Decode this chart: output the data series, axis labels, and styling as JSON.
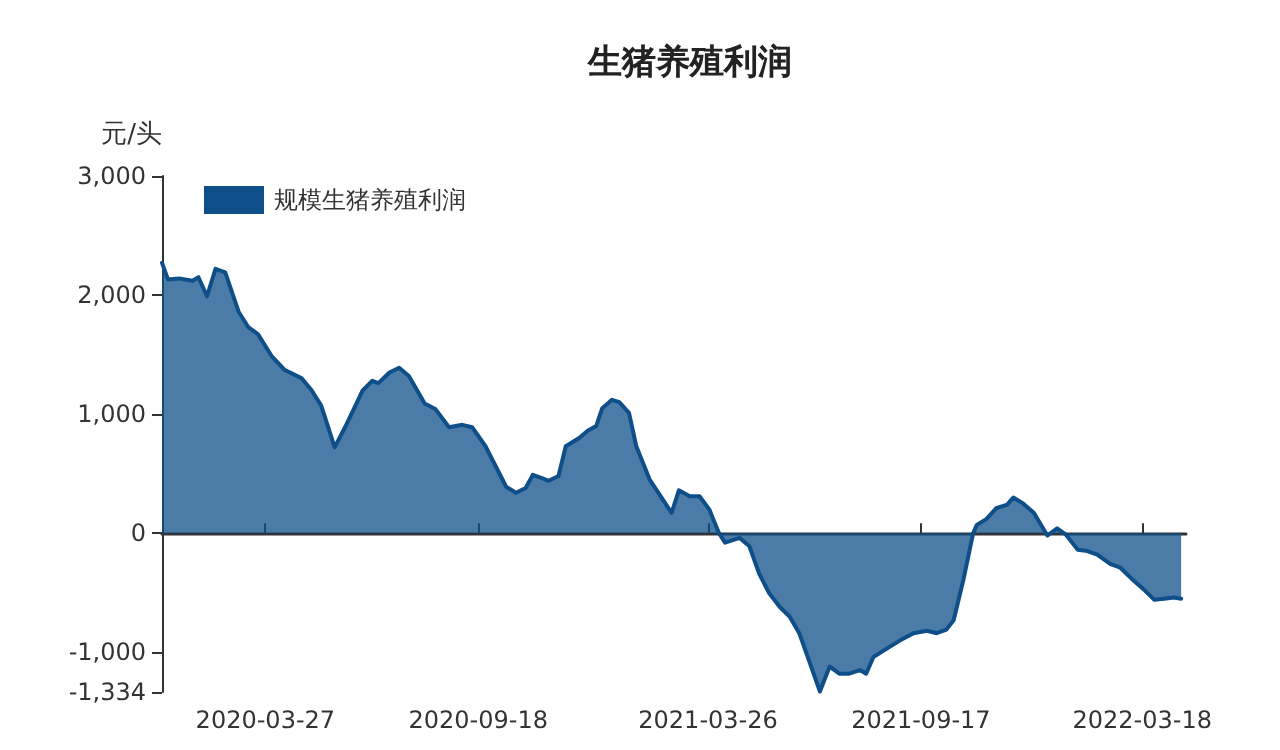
{
  "chart_data": {
    "type": "area",
    "title": "生猪养殖利润",
    "ylabel": "元/头",
    "x": [
      "2020-01-02",
      "2020-01-07",
      "2020-01-16",
      "2020-01-27",
      "2020-02-01",
      "2020-02-08",
      "2020-02-15",
      "2020-02-23",
      "2020-03-05",
      "2020-03-13",
      "2020-03-21",
      "2020-04-01",
      "2020-04-12",
      "2020-04-26",
      "2020-05-04",
      "2020-05-12",
      "2020-05-23",
      "2020-06-01",
      "2020-06-15",
      "2020-06-23",
      "2020-06-28",
      "2020-07-07",
      "2020-07-15",
      "2020-07-23",
      "2020-08-05",
      "2020-08-14",
      "2020-08-25",
      "2020-09-05",
      "2020-09-13",
      "2020-09-24",
      "2020-10-11",
      "2020-10-19",
      "2020-10-27",
      "2020-11-02",
      "2020-11-10",
      "2020-11-15",
      "2020-11-23",
      "2020-11-29",
      "2020-12-10",
      "2020-12-17",
      "2020-12-24",
      "2020-12-29",
      "2021-01-06",
      "2021-01-12",
      "2021-01-20",
      "2021-01-26",
      "2021-02-06",
      "2021-02-17",
      "2021-02-24",
      "2021-03-02",
      "2021-03-11",
      "2021-03-19",
      "2021-03-27",
      "2021-04-04",
      "2021-04-09",
      "2021-04-21",
      "2021-04-29",
      "2021-05-07",
      "2021-05-15",
      "2021-05-24",
      "2021-06-01",
      "2021-06-09",
      "2021-06-17",
      "2021-06-26",
      "2021-07-04",
      "2021-07-12",
      "2021-07-20",
      "2021-07-29",
      "2021-08-03",
      "2021-08-09",
      "2021-08-20",
      "2021-08-31",
      "2021-09-11",
      "2021-09-22",
      "2021-09-30",
      "2021-10-08",
      "2021-10-14",
      "2021-10-22",
      "2021-10-30",
      "2021-11-02",
      "2021-11-10",
      "2021-11-18",
      "2021-11-27",
      "2021-12-02",
      "2021-12-10",
      "2021-12-19",
      "2021-12-30",
      "2022-01-07",
      "2022-01-14",
      "2022-01-24",
      "2022-02-01",
      "2022-02-09",
      "2022-02-20",
      "2022-02-28",
      "2022-03-09",
      "2022-03-20",
      "2022-03-28",
      "2022-04-05",
      "2022-04-13",
      "2022-04-19"
    ],
    "series": [
      {
        "name": "规模生猪养殖利润",
        "color": "#0f4f89",
        "values": [
          2270,
          2130,
          2140,
          2120,
          2150,
          1990,
          2220,
          2190,
          1860,
          1730,
          1670,
          1490,
          1370,
          1300,
          1200,
          1070,
          720,
          900,
          1200,
          1280,
          1260,
          1350,
          1390,
          1320,
          1090,
          1040,
          890,
          910,
          890,
          730,
          390,
          340,
          380,
          490,
          460,
          440,
          480,
          730,
          800,
          860,
          900,
          1050,
          1120,
          1100,
          1010,
          730,
          450,
          280,
          170,
          360,
          310,
          310,
          200,
          0,
          -80,
          -40,
          -110,
          -340,
          -500,
          -620,
          -700,
          -840,
          -1070,
          -1330,
          -1120,
          -1180,
          -1180,
          -1150,
          -1180,
          -1040,
          -970,
          -900,
          -840,
          -820,
          -840,
          -810,
          -730,
          -390,
          0,
          70,
          120,
          210,
          240,
          300,
          250,
          170,
          -20,
          40,
          -10,
          -140,
          -150,
          -180,
          -260,
          -290,
          -380,
          -480,
          -560,
          -550,
          -540,
          -550
        ]
      }
    ],
    "xlim": [
      "2020-01-02",
      "2022-04-23"
    ],
    "xticks": [
      "2020-03-27",
      "2020-09-18",
      "2021-03-26",
      "2021-09-17",
      "2022-03-18"
    ],
    "ylim": [
      -1334,
      3000
    ],
    "yticks": [
      {
        "value": -1334,
        "label": "-1,334"
      },
      {
        "value": -1000,
        "label": "-1,000"
      },
      {
        "value": 0,
        "label": "0"
      },
      {
        "value": 1000,
        "label": "1,000"
      },
      {
        "value": 2000,
        "label": "2,000"
      },
      {
        "value": 3000,
        "label": "3,000"
      }
    ],
    "legend": "top left",
    "marker": "none"
  }
}
